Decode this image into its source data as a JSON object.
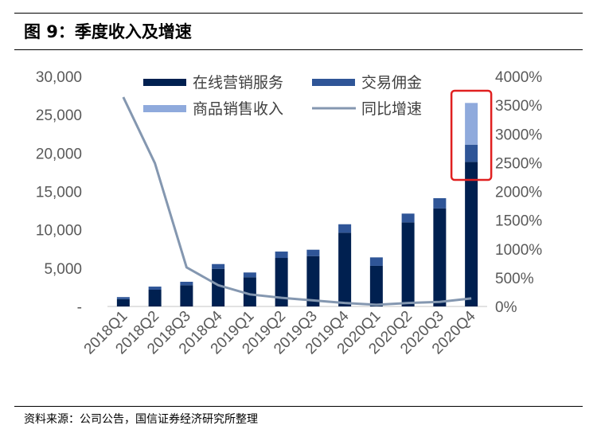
{
  "title": "图 9：季度收入及增速",
  "source": "资料来源：公司公告，国信证券经济研究所整理",
  "chart_data": {
    "type": "bar",
    "stacked": true,
    "categories": [
      "2018Q1",
      "2018Q2",
      "2018Q3",
      "2018Q4",
      "2019Q1",
      "2019Q2",
      "2019Q3",
      "2019Q4",
      "2020Q1",
      "2020Q2",
      "2020Q3",
      "2020Q4"
    ],
    "series": [
      {
        "name": "在线营销服务",
        "color": "#002050",
        "axis": "left",
        "values": [
          950,
          2180,
          2770,
          4910,
          3810,
          6330,
          6570,
          9620,
          5300,
          10970,
          12800,
          18860
        ]
      },
      {
        "name": "交易佣金",
        "color": "#2F5597",
        "axis": "left",
        "values": [
          270,
          410,
          450,
          620,
          620,
          830,
          830,
          1100,
          1100,
          1140,
          1320,
          2240
        ]
      },
      {
        "name": "商品销售收入",
        "color": "#8FAADC",
        "axis": "left",
        "values": [
          0,
          0,
          0,
          0,
          0,
          0,
          0,
          0,
          0,
          0,
          0,
          5440
        ]
      },
      {
        "name": "同比增速",
        "type": "line",
        "color": "#8497B0",
        "axis": "right",
        "values": [
          3640,
          2490,
          680,
          370,
          210,
          150,
          105,
          60,
          30,
          60,
          80,
          140
        ]
      }
    ],
    "yleft": {
      "range": [
        0,
        30000
      ],
      "ticks": [
        "-",
        "5,000",
        "10,000",
        "15,000",
        "20,000",
        "25,000",
        "30,000"
      ]
    },
    "yright": {
      "range": [
        0,
        4000
      ],
      "ticks": [
        "0%",
        "500%",
        "1000%",
        "1500%",
        "2000%",
        "2500%",
        "3000%",
        "3500%",
        "4000%"
      ]
    },
    "legend": "top",
    "highlight": {
      "category": "2020Q4",
      "color": "#E02020"
    },
    "grid": false
  }
}
